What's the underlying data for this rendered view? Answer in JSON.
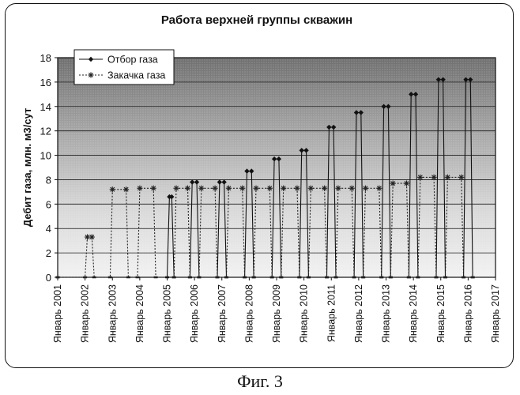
{
  "caption": "Фиг. 3",
  "chart_data": {
    "type": "line",
    "title": "Работа верхней группы скважин",
    "ylabel": "Дебит газа, млн. м3/сут",
    "xlabel": "",
    "ylim": [
      0,
      18
    ],
    "yticks": [
      0,
      2,
      4,
      6,
      8,
      10,
      12,
      14,
      16,
      18
    ],
    "xlim": [
      "2001-01",
      "2017-01"
    ],
    "xticks": [
      "Январь 2001",
      "Январь 2002",
      "Январь 2003",
      "Январь 2004",
      "Январь 2005",
      "Январь 2006",
      "Январь 2007",
      "Январь 2008",
      "Январь 2009",
      "Январь 2010",
      "Январь 2011",
      "Январь 2012",
      "Январь 2013",
      "Январь 2014",
      "Январь 2015",
      "Январь 2016",
      "Январь 2017"
    ],
    "grid": true,
    "legend_position": "top-left",
    "series": [
      {
        "name": "Отбор газа",
        "color": "#111111",
        "marker": "diamond",
        "points": [
          {
            "x": "2001-01",
            "y": 0
          },
          {
            "x": "2005-01",
            "y": 0
          },
          {
            "x": "2005-02",
            "y": 6.6
          },
          {
            "x": "2005-03",
            "y": 6.6
          },
          {
            "x": "2005-04",
            "y": 0
          },
          {
            "x": "2005-11",
            "y": 0
          },
          {
            "x": "2005-12",
            "y": 7.8
          },
          {
            "x": "2006-02",
            "y": 7.8
          },
          {
            "x": "2006-03",
            "y": 0
          },
          {
            "x": "2006-11",
            "y": 0
          },
          {
            "x": "2006-12",
            "y": 7.8
          },
          {
            "x": "2007-02",
            "y": 7.8
          },
          {
            "x": "2007-03",
            "y": 0
          },
          {
            "x": "2007-11",
            "y": 0
          },
          {
            "x": "2007-12",
            "y": 8.7
          },
          {
            "x": "2008-02",
            "y": 8.7
          },
          {
            "x": "2008-03",
            "y": 0
          },
          {
            "x": "2008-11",
            "y": 0
          },
          {
            "x": "2008-12",
            "y": 9.7
          },
          {
            "x": "2009-02",
            "y": 9.7
          },
          {
            "x": "2009-03",
            "y": 0
          },
          {
            "x": "2009-11",
            "y": 0
          },
          {
            "x": "2009-12",
            "y": 10.4
          },
          {
            "x": "2010-02",
            "y": 10.4
          },
          {
            "x": "2010-03",
            "y": 0
          },
          {
            "x": "2010-11",
            "y": 0
          },
          {
            "x": "2010-12",
            "y": 12.3
          },
          {
            "x": "2011-02",
            "y": 12.3
          },
          {
            "x": "2011-03",
            "y": 0
          },
          {
            "x": "2011-11",
            "y": 0
          },
          {
            "x": "2011-12",
            "y": 13.5
          },
          {
            "x": "2012-02",
            "y": 13.5
          },
          {
            "x": "2012-03",
            "y": 0
          },
          {
            "x": "2012-11",
            "y": 0
          },
          {
            "x": "2012-12",
            "y": 14.0
          },
          {
            "x": "2013-02",
            "y": 14.0
          },
          {
            "x": "2013-03",
            "y": 0
          },
          {
            "x": "2013-11",
            "y": 0
          },
          {
            "x": "2013-12",
            "y": 15.0
          },
          {
            "x": "2014-02",
            "y": 15.0
          },
          {
            "x": "2014-03",
            "y": 0
          },
          {
            "x": "2014-11",
            "y": 0
          },
          {
            "x": "2014-12",
            "y": 16.2
          },
          {
            "x": "2015-02",
            "y": 16.2
          },
          {
            "x": "2015-03",
            "y": 0
          },
          {
            "x": "2015-11",
            "y": 0
          },
          {
            "x": "2015-12",
            "y": 16.2
          },
          {
            "x": "2016-02",
            "y": 16.2
          },
          {
            "x": "2016-03",
            "y": 0
          }
        ]
      },
      {
        "name": "Закачка газа",
        "color": "#222222",
        "marker": "star",
        "points": [
          {
            "x": "2001-01",
            "y": 0
          },
          {
            "x": "2002-01",
            "y": 0
          },
          {
            "x": "2002-02",
            "y": 3.3
          },
          {
            "x": "2002-04",
            "y": 3.3
          },
          {
            "x": "2002-05",
            "y": 0
          },
          {
            "x": "2002-12",
            "y": 0
          },
          {
            "x": "2003-01",
            "y": 7.2
          },
          {
            "x": "2003-07",
            "y": 7.2
          },
          {
            "x": "2003-08",
            "y": 0
          },
          {
            "x": "2003-12",
            "y": 0
          },
          {
            "x": "2004-01",
            "y": 7.3
          },
          {
            "x": "2004-07",
            "y": 7.3
          },
          {
            "x": "2004-08",
            "y": 0
          },
          {
            "x": "2005-04",
            "y": 0
          },
          {
            "x": "2005-05",
            "y": 7.3
          },
          {
            "x": "2005-10",
            "y": 7.3
          },
          {
            "x": "2005-11",
            "y": 0
          },
          {
            "x": "2006-03",
            "y": 0
          },
          {
            "x": "2006-04",
            "y": 7.3
          },
          {
            "x": "2006-10",
            "y": 7.3
          },
          {
            "x": "2006-11",
            "y": 0
          },
          {
            "x": "2007-03",
            "y": 0
          },
          {
            "x": "2007-04",
            "y": 7.3
          },
          {
            "x": "2007-10",
            "y": 7.3
          },
          {
            "x": "2007-11",
            "y": 0
          },
          {
            "x": "2008-03",
            "y": 0
          },
          {
            "x": "2008-04",
            "y": 7.3
          },
          {
            "x": "2008-10",
            "y": 7.3
          },
          {
            "x": "2008-11",
            "y": 0
          },
          {
            "x": "2009-03",
            "y": 0
          },
          {
            "x": "2009-04",
            "y": 7.3
          },
          {
            "x": "2009-10",
            "y": 7.3
          },
          {
            "x": "2009-11",
            "y": 0
          },
          {
            "x": "2010-03",
            "y": 0
          },
          {
            "x": "2010-04",
            "y": 7.3
          },
          {
            "x": "2010-10",
            "y": 7.3
          },
          {
            "x": "2010-11",
            "y": 0
          },
          {
            "x": "2011-03",
            "y": 0
          },
          {
            "x": "2011-04",
            "y": 7.3
          },
          {
            "x": "2011-10",
            "y": 7.3
          },
          {
            "x": "2011-11",
            "y": 0
          },
          {
            "x": "2012-03",
            "y": 0
          },
          {
            "x": "2012-04",
            "y": 7.3
          },
          {
            "x": "2012-10",
            "y": 7.3
          },
          {
            "x": "2012-11",
            "y": 0
          },
          {
            "x": "2013-03",
            "y": 0
          },
          {
            "x": "2013-04",
            "y": 7.7
          },
          {
            "x": "2013-10",
            "y": 7.7
          },
          {
            "x": "2013-11",
            "y": 0
          },
          {
            "x": "2014-03",
            "y": 0
          },
          {
            "x": "2014-04",
            "y": 8.2
          },
          {
            "x": "2014-10",
            "y": 8.2
          },
          {
            "x": "2014-11",
            "y": 0
          },
          {
            "x": "2015-03",
            "y": 0
          },
          {
            "x": "2015-04",
            "y": 8.2
          },
          {
            "x": "2015-10",
            "y": 8.2
          },
          {
            "x": "2015-11",
            "y": 0
          },
          {
            "x": "2016-03",
            "y": 0
          }
        ]
      }
    ]
  }
}
